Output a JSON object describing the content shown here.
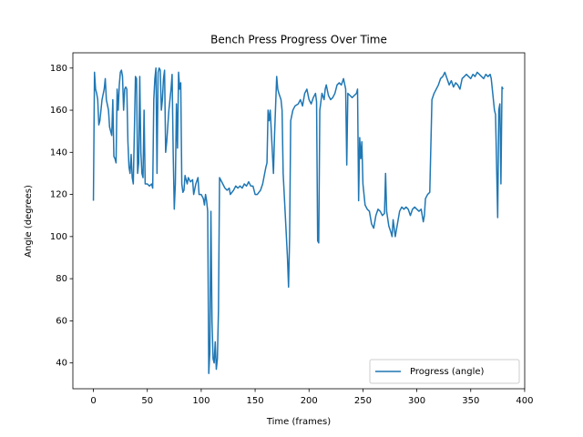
{
  "chart_data": {
    "type": "line",
    "title": "Bench Press Progress Over Time",
    "x_label": "Time (frames)",
    "y_label": "Angle (degrees)",
    "x": [
      0,
      1,
      2,
      3,
      4,
      5,
      6,
      8,
      10,
      11,
      12,
      14,
      15,
      16,
      17,
      18,
      19,
      20,
      21,
      22,
      23,
      24,
      25,
      26,
      27,
      28,
      29,
      30,
      31,
      32,
      33,
      34,
      35,
      36,
      37,
      38,
      39,
      40,
      41,
      42,
      43,
      44,
      45,
      46,
      47,
      48,
      50,
      52,
      54,
      55,
      56,
      57,
      58,
      59,
      60,
      61,
      62,
      63,
      64,
      65,
      66,
      67,
      68,
      70,
      72,
      73,
      74,
      75,
      76,
      77,
      78,
      79,
      80,
      81,
      82,
      83,
      84,
      85,
      87,
      88,
      90,
      92,
      93,
      95,
      97,
      98,
      100,
      102,
      103,
      104,
      105,
      106,
      107,
      108,
      109,
      110,
      111,
      112,
      113,
      114,
      115,
      116,
      117,
      118,
      120,
      122,
      124,
      126,
      127,
      130,
      132,
      134,
      136,
      138,
      140,
      142,
      144,
      146,
      148,
      150,
      152,
      155,
      157,
      160,
      161,
      162,
      163,
      164,
      165,
      166,
      167,
      168,
      170,
      171,
      172,
      174,
      175,
      176,
      178,
      180,
      181,
      182,
      183,
      185,
      187,
      190,
      192,
      194,
      196,
      198,
      200,
      202,
      204,
      206,
      207,
      208,
      209,
      210,
      212,
      214,
      215,
      216,
      218,
      220,
      222,
      224,
      226,
      228,
      230,
      232,
      234,
      235,
      236,
      238,
      240,
      242,
      244,
      245,
      246,
      247,
      248,
      249,
      250,
      252,
      254,
      256,
      258,
      260,
      262,
      264,
      266,
      268,
      270,
      271,
      272,
      274,
      276,
      277,
      278,
      280,
      282,
      284,
      286,
      288,
      290,
      292,
      294,
      296,
      298,
      300,
      302,
      304,
      306,
      307,
      308,
      310,
      312,
      314,
      316,
      318,
      320,
      322,
      324,
      326,
      328,
      330,
      332,
      334,
      336,
      338,
      340,
      342,
      344,
      346,
      348,
      350,
      352,
      354,
      356,
      358,
      360,
      362,
      364,
      366,
      368,
      369,
      370,
      372,
      373,
      375,
      376,
      377,
      378,
      379,
      380
    ],
    "series": [
      {
        "name": "Progress (angle)",
        "color": "#1f77b4",
        "values": [
          117,
          178,
          170,
          168,
          165,
          153,
          155,
          165,
          170,
          175,
          165,
          160,
          152,
          150,
          148,
          165,
          138,
          137,
          135,
          170,
          160,
          172,
          178,
          179,
          176,
          160,
          170,
          171,
          170,
          145,
          133,
          130,
          139,
          128,
          125,
          150,
          176,
          175,
          130,
          135,
          176,
          140,
          130,
          128,
          160,
          125,
          125,
          124,
          125,
          123,
          165,
          175,
          180,
          130,
          178,
          180,
          179,
          160,
          165,
          175,
          179,
          140,
          145,
          160,
          170,
          177,
          140,
          113,
          125,
          163,
          142,
          178,
          170,
          173,
          125,
          121,
          122,
          129,
          125,
          128,
          126,
          127,
          120,
          125,
          128,
          120,
          120,
          118,
          115,
          120,
          117,
          112,
          35,
          45,
          112,
          60,
          42,
          40,
          50,
          37,
          42,
          65,
          128,
          127,
          125,
          123,
          122,
          123,
          120,
          122,
          124,
          123,
          124,
          123,
          125,
          124,
          126,
          124,
          124,
          120,
          120,
          122,
          125,
          133,
          135,
          160,
          155,
          160,
          150,
          140,
          130,
          148,
          176,
          170,
          168,
          165,
          160,
          130,
          110,
          90,
          76,
          100,
          155,
          160,
          162,
          163,
          165,
          162,
          168,
          170,
          165,
          163,
          166,
          168,
          164,
          98,
          97,
          160,
          168,
          165,
          170,
          172,
          167,
          165,
          166,
          168,
          172,
          173,
          172,
          175,
          170,
          134,
          168,
          167,
          166,
          167,
          168,
          170,
          117,
          147,
          137,
          145,
          125,
          115,
          113,
          112,
          106,
          104,
          110,
          113,
          112,
          110,
          111,
          130,
          112,
          105,
          102,
          100,
          108,
          100,
          106,
          112,
          114,
          113,
          114,
          113,
          110,
          113,
          114,
          113,
          112,
          113,
          107,
          110,
          118,
          120,
          121,
          165,
          168,
          170,
          172,
          175,
          176,
          178,
          175,
          172,
          174,
          171,
          173,
          172,
          170,
          175,
          176,
          177,
          176,
          175,
          177,
          176,
          178,
          177,
          176,
          175,
          177,
          176,
          177,
          175,
          170,
          160,
          158,
          109,
          160,
          163,
          125,
          171,
          170
        ]
      }
    ],
    "xlim": [
      -19.05,
      400.05
    ],
    "xticks": [
      0,
      50,
      100,
      150,
      200,
      250,
      300,
      350,
      400
    ],
    "ylim": [
      27.75,
      187.25
    ],
    "yticks": [
      40,
      60,
      80,
      100,
      120,
      140,
      160,
      180
    ],
    "legend": "lower right"
  }
}
